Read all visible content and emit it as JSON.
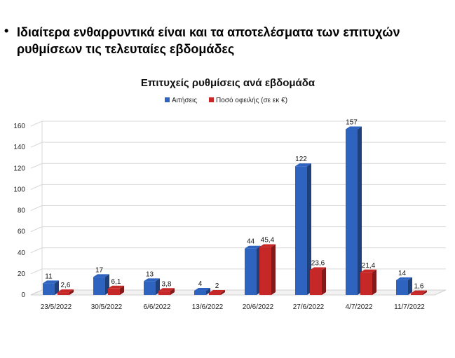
{
  "slide": {
    "bullet": "•",
    "heading": "Ιδιαίτερα ενθαρρυντικά είναι και τα αποτελέσματα των επιτυχών ρυθμίσεων τις τελευταίες εβδομάδες"
  },
  "chart_data": {
    "type": "bar",
    "title": "Επιτυχείς ρυθμίσεις ανά εβδομάδα",
    "categories": [
      "23/5/2022",
      "30/5/2022",
      "6/6/2022",
      "13/6/2022",
      "20/6/2022",
      "27/6/2022",
      "4/7/2022",
      "11/7/2022"
    ],
    "series": [
      {
        "name": "Αιτήσεις",
        "color": "#2e64c0",
        "values": [
          11,
          17,
          13,
          4,
          44,
          122,
          157,
          14
        ],
        "labels": [
          "11",
          "17",
          "13",
          "4",
          "44",
          "122",
          "157",
          "14"
        ]
      },
      {
        "name": "Ποσό οφειλής (σε εκ €)",
        "color": "#c62828",
        "values": [
          2.6,
          6.1,
          3.8,
          2,
          45.4,
          23.6,
          21.4,
          1.6
        ],
        "labels": [
          "2,6",
          "6,1",
          "3,8",
          "2",
          "45,4",
          "23,6",
          "21,4",
          "1,6"
        ]
      }
    ],
    "yticks": [
      "0",
      "20",
      "40",
      "60",
      "80",
      "100",
      "120",
      "140",
      "160"
    ],
    "ylim": [
      0,
      160
    ],
    "grid": true,
    "legend": "top-center"
  }
}
